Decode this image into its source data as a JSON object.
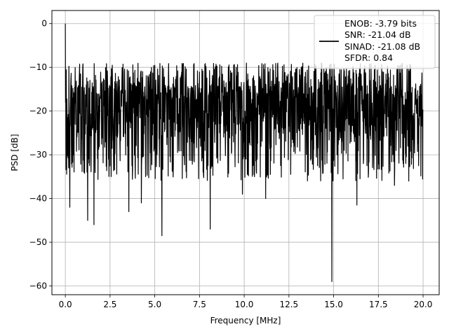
{
  "chart_data": {
    "type": "line",
    "xlabel": "Frequency [MHz]",
    "ylabel": "PSD [dB]",
    "xlim": [
      -0.75,
      20.9
    ],
    "ylim": [
      -62,
      3
    ],
    "xticks": [
      0.0,
      2.5,
      5.0,
      7.5,
      10.0,
      12.5,
      15.0,
      17.5,
      20.0
    ],
    "xtick_labels": [
      "0.0",
      "2.5",
      "5.0",
      "7.5",
      "10.0",
      "12.5",
      "15.0",
      "17.5",
      "20.0"
    ],
    "yticks": [
      0,
      -10,
      -20,
      -30,
      -40,
      -50,
      -60
    ],
    "ytick_labels": [
      "0",
      "−10",
      "−20",
      "−30",
      "−40",
      "−50",
      "−60"
    ],
    "grid": true,
    "legend_position": "top-right",
    "series": [
      {
        "color": "#000000",
        "legend_lines": [
          "ENOB: -3.79 bits",
          "SNR: -21.04 dB",
          "SINAD: -21.08 dB",
          "SFDR: 0.84"
        ],
        "x_range": [
          0,
          20
        ],
        "peak": {
          "x": 0.0,
          "y": 0
        },
        "noise_floor_db": -20,
        "noise_top_db": -9,
        "notable_dips": [
          {
            "x": 0.25,
            "y": -42
          },
          {
            "x": 1.25,
            "y": -45
          },
          {
            "x": 1.6,
            "y": -46
          },
          {
            "x": 3.55,
            "y": -43
          },
          {
            "x": 4.25,
            "y": -41
          },
          {
            "x": 5.4,
            "y": -48.5
          },
          {
            "x": 8.1,
            "y": -47
          },
          {
            "x": 9.9,
            "y": -39
          },
          {
            "x": 11.2,
            "y": -40
          },
          {
            "x": 14.9,
            "y": -59
          },
          {
            "x": 16.3,
            "y": -41.5
          },
          {
            "x": 18.4,
            "y": -37
          },
          {
            "x": 19.2,
            "y": -36
          }
        ]
      }
    ]
  }
}
